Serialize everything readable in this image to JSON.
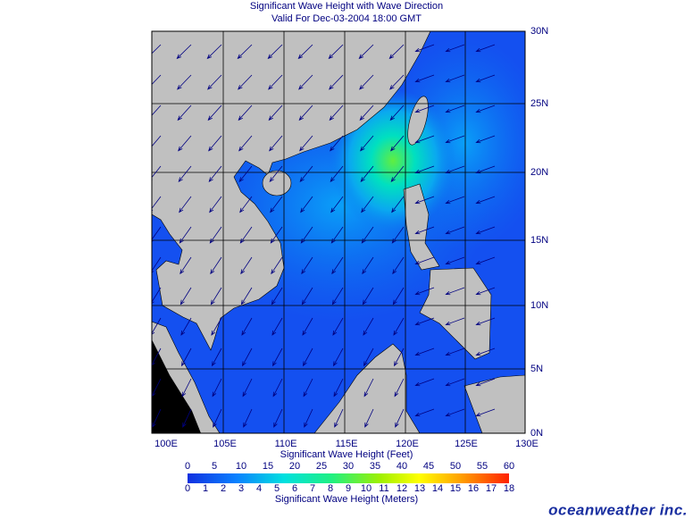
{
  "title": "Significant Wave Height with Wave Direction",
  "subtitle": "Valid For Dec-03-2004 18:00 GMT",
  "map": {
    "lon_labels": [
      "100E",
      "105E",
      "110E",
      "115E",
      "120E",
      "125E",
      "130E"
    ],
    "lat_labels": [
      "30N",
      "25N",
      "20N",
      "15N",
      "10N",
      "5N",
      "0N"
    ]
  },
  "colorbar": {
    "feet_title": "Significant Wave Height (Feet)",
    "feet_ticks": [
      0,
      5,
      10,
      15,
      20,
      25,
      30,
      35,
      40,
      45,
      50,
      55,
      60
    ],
    "meters_ticks": [
      0,
      1,
      2,
      3,
      4,
      5,
      6,
      7,
      8,
      9,
      10,
      11,
      12,
      13,
      14,
      15,
      16,
      17,
      18
    ],
    "meters_title": "Significant Wave Height (Meters)"
  },
  "logo": "oceanweather inc."
}
